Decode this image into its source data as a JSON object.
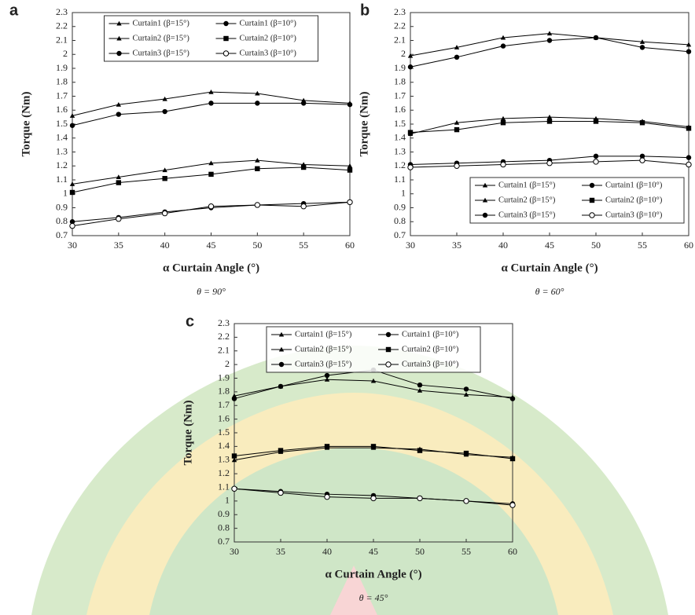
{
  "chart_data": [
    {
      "type": "line",
      "panel": "a",
      "caption": "θ = 90°",
      "xlabel": "α Curtain Angle (°)",
      "ylabel": "Torque (Nm)",
      "x": [
        30,
        35,
        40,
        45,
        50,
        55,
        60
      ],
      "xlim": [
        30,
        60
      ],
      "xticks": [
        30,
        35,
        40,
        45,
        50,
        55,
        60
      ],
      "ylim": [
        0.7,
        2.3
      ],
      "yticks": [
        0.7,
        0.8,
        0.9,
        1,
        1.1,
        1.2,
        1.3,
        1.4,
        1.5,
        1.6,
        1.7,
        1.8,
        1.9,
        2,
        2.1,
        2.2,
        2.3
      ],
      "legend": "upper center",
      "series": [
        {
          "name": "Curtain1 (β=15°)",
          "color": "#000000",
          "marker": "triangle",
          "values": [
            1.56,
            1.64,
            1.68,
            1.73,
            1.72,
            1.67,
            1.65
          ]
        },
        {
          "name": "Curtain1 (β=10°)",
          "color": "#000000",
          "marker": "circle",
          "values": [
            1.49,
            1.57,
            1.59,
            1.65,
            1.65,
            1.65,
            1.64
          ]
        },
        {
          "name": "Curtain2 (β=15°)",
          "color": "#000000",
          "marker": "triangle",
          "values": [
            1.07,
            1.12,
            1.17,
            1.22,
            1.24,
            1.21,
            1.2
          ]
        },
        {
          "name": "Curtain2 (β=10°)",
          "color": "#000000",
          "marker": "square",
          "values": [
            1.01,
            1.08,
            1.11,
            1.14,
            1.18,
            1.19,
            1.17
          ]
        },
        {
          "name": "Curtain3 (β=15°)",
          "color": "#000000",
          "marker": "circle",
          "values": [
            0.8,
            0.83,
            0.87,
            0.9,
            0.92,
            0.93,
            0.94
          ]
        },
        {
          "name": "Curtain3 (β=10°)",
          "color": "#000000",
          "marker": "open-circle",
          "values": [
            0.77,
            0.82,
            0.86,
            0.91,
            0.92,
            0.91,
            0.94
          ]
        }
      ]
    },
    {
      "type": "line",
      "panel": "b",
      "caption": "θ = 60°",
      "xlabel": "α Curtain Angle (°)",
      "ylabel": "Torque (Nm)",
      "x": [
        30,
        35,
        40,
        45,
        50,
        55,
        60
      ],
      "xlim": [
        30,
        60
      ],
      "xticks": [
        30,
        35,
        40,
        45,
        50,
        55,
        60
      ],
      "ylim": [
        0.7,
        2.3
      ],
      "yticks": [
        0.7,
        0.8,
        0.9,
        1,
        1.1,
        1.2,
        1.3,
        1.4,
        1.5,
        1.6,
        1.7,
        1.8,
        1.9,
        2,
        2.1,
        2.2,
        2.3
      ],
      "legend": "lower right",
      "series": [
        {
          "name": "Curtain1 (β=15°)",
          "color": "#000000",
          "marker": "triangle",
          "values": [
            1.99,
            2.05,
            2.12,
            2.15,
            2.12,
            2.09,
            2.07
          ]
        },
        {
          "name": "Curtain1 (β=10°)",
          "color": "#000000",
          "marker": "circle",
          "values": [
            1.91,
            1.98,
            2.06,
            2.1,
            2.12,
            2.05,
            2.02
          ]
        },
        {
          "name": "Curtain2 (β=15°)",
          "color": "#000000",
          "marker": "triangle",
          "values": [
            1.43,
            1.51,
            1.54,
            1.55,
            1.54,
            1.52,
            1.48
          ]
        },
        {
          "name": "Curtain2 (β=10°)",
          "color": "#000000",
          "marker": "square",
          "values": [
            1.44,
            1.46,
            1.51,
            1.52,
            1.52,
            1.51,
            1.47
          ]
        },
        {
          "name": "Curtain3 (β=15°)",
          "color": "#000000",
          "marker": "circle",
          "values": [
            1.21,
            1.22,
            1.23,
            1.24,
            1.27,
            1.27,
            1.26
          ]
        },
        {
          "name": "Curtain3 (β=10°)",
          "color": "#000000",
          "marker": "open-circle",
          "values": [
            1.19,
            1.2,
            1.21,
            1.22,
            1.23,
            1.24,
            1.21
          ]
        }
      ]
    },
    {
      "type": "line",
      "panel": "c",
      "caption": "θ = 45°",
      "xlabel": "α Curtain Angle (°)",
      "ylabel": "Torque (Nm)",
      "x": [
        30,
        35,
        40,
        45,
        50,
        55,
        60
      ],
      "xlim": [
        30,
        60
      ],
      "xticks": [
        30,
        35,
        40,
        45,
        50,
        55,
        60
      ],
      "ylim": [
        0.7,
        2.3
      ],
      "yticks": [
        0.7,
        0.8,
        0.9,
        1,
        1.1,
        1.2,
        1.3,
        1.4,
        1.5,
        1.6,
        1.7,
        1.8,
        1.9,
        2,
        2.1,
        2.2,
        2.3
      ],
      "legend": "upper center",
      "series": [
        {
          "name": "Curtain1 (β=15°)",
          "color": "#000000",
          "marker": "triangle",
          "values": [
            1.77,
            1.84,
            1.89,
            1.88,
            1.81,
            1.78,
            1.76
          ]
        },
        {
          "name": "Curtain1 (β=10°)",
          "color": "#000000",
          "marker": "circle",
          "values": [
            1.75,
            1.84,
            1.92,
            1.96,
            1.85,
            1.82,
            1.75
          ]
        },
        {
          "name": "Curtain2 (β=15°)",
          "color": "#000000",
          "marker": "triangle",
          "values": [
            1.3,
            1.36,
            1.39,
            1.39,
            1.38,
            1.34,
            1.32
          ]
        },
        {
          "name": "Curtain2 (β=10°)",
          "color": "#000000",
          "marker": "square",
          "values": [
            1.33,
            1.37,
            1.4,
            1.4,
            1.37,
            1.35,
            1.31
          ]
        },
        {
          "name": "Curtain3 (β=15°)",
          "color": "#000000",
          "marker": "circle",
          "values": [
            1.09,
            1.07,
            1.05,
            1.04,
            1.02,
            1,
            0.98
          ]
        },
        {
          "name": "Curtain3 (β=10°)",
          "color": "#000000",
          "marker": "open-circle",
          "values": [
            1.09,
            1.06,
            1.03,
            1.02,
            1.02,
            1,
            0.97
          ]
        }
      ]
    }
  ]
}
